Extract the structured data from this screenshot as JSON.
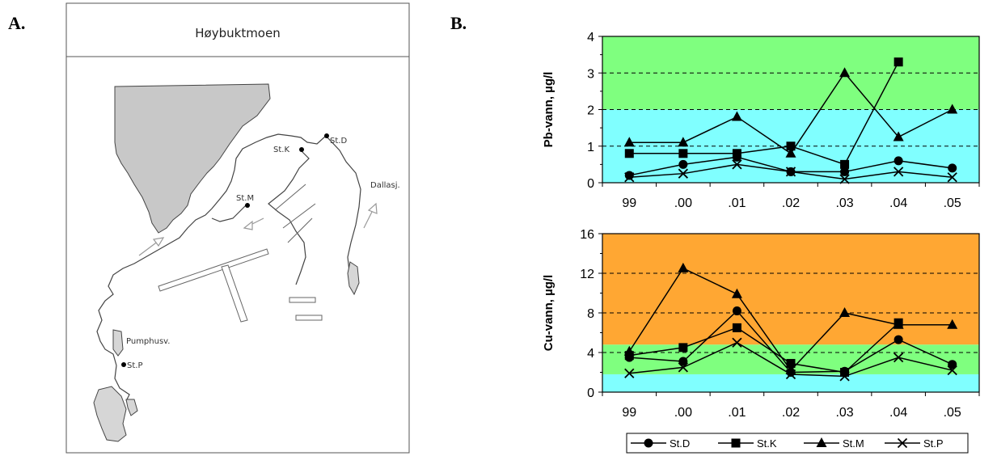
{
  "panels": {
    "a_label": "A.",
    "b_label": "B."
  },
  "map": {
    "title": "Høybuktmoen",
    "labels": {
      "st_d": "St.D",
      "st_k": "St.K",
      "st_m": "St.M",
      "st_p": "St.P",
      "dallasj": "Dallasj.",
      "pumphusv": "Pumphusv."
    }
  },
  "colors": {
    "green": "#7fff7f",
    "cyan": "#80ffff",
    "orange": "#ffa733",
    "line": "#000000"
  },
  "legend": [
    "St.D",
    "St.K",
    "St.M",
    "St.P"
  ],
  "chart_data": [
    {
      "type": "line",
      "ylabel": "Pb-vann, µg/l",
      "categories": [
        "99",
        ".00",
        ".01",
        ".02",
        ".03",
        ".04",
        ".05"
      ],
      "ylim": [
        0,
        4
      ],
      "yticks": [
        0,
        1,
        2,
        3,
        4
      ],
      "gridlines": [
        1,
        2,
        3
      ],
      "bands": [
        {
          "from": 0,
          "to": 2,
          "color": "#80ffff"
        },
        {
          "from": 2,
          "to": 4,
          "color": "#7fff7f"
        }
      ],
      "series": [
        {
          "name": "St.D",
          "marker": "circle",
          "values": [
            0.2,
            0.5,
            0.7,
            0.3,
            0.3,
            0.6,
            0.4
          ]
        },
        {
          "name": "St.K",
          "marker": "square",
          "values": [
            0.8,
            0.8,
            0.8,
            1.0,
            0.5,
            3.3,
            null
          ]
        },
        {
          "name": "St.M",
          "marker": "triangle",
          "values": [
            1.1,
            1.1,
            1.8,
            0.8,
            3.0,
            1.25,
            2.0
          ]
        },
        {
          "name": "St.P",
          "marker": "x",
          "values": [
            0.15,
            0.25,
            0.5,
            0.3,
            0.1,
            0.3,
            0.15
          ]
        }
      ]
    },
    {
      "type": "line",
      "ylabel": "Cu-vann, µg/l",
      "categories": [
        "99",
        ".00",
        ".01",
        ".02",
        ".03",
        ".04",
        ".05"
      ],
      "ylim": [
        0,
        16
      ],
      "yticks": [
        0,
        4,
        8,
        12,
        16
      ],
      "gridlines": [
        4,
        8,
        12
      ],
      "bands": [
        {
          "from": 0,
          "to": 1.8,
          "color": "#80ffff"
        },
        {
          "from": 1.8,
          "to": 4.8,
          "color": "#7fff7f"
        },
        {
          "from": 4.8,
          "to": 16,
          "color": "#ffa733"
        }
      ],
      "series": [
        {
          "name": "St.D",
          "marker": "circle",
          "values": [
            3.5,
            3.1,
            8.2,
            2.0,
            2.1,
            5.3,
            2.8
          ]
        },
        {
          "name": "St.K",
          "marker": "square",
          "values": [
            3.7,
            4.5,
            6.5,
            2.9,
            2.0,
            7.0,
            null
          ]
        },
        {
          "name": "St.M",
          "marker": "triangle",
          "values": [
            4.1,
            12.5,
            9.9,
            2.2,
            8.0,
            6.8,
            6.8
          ]
        },
        {
          "name": "St.P",
          "marker": "x",
          "values": [
            1.9,
            2.5,
            5.0,
            1.8,
            1.6,
            3.5,
            2.2
          ]
        }
      ]
    }
  ]
}
